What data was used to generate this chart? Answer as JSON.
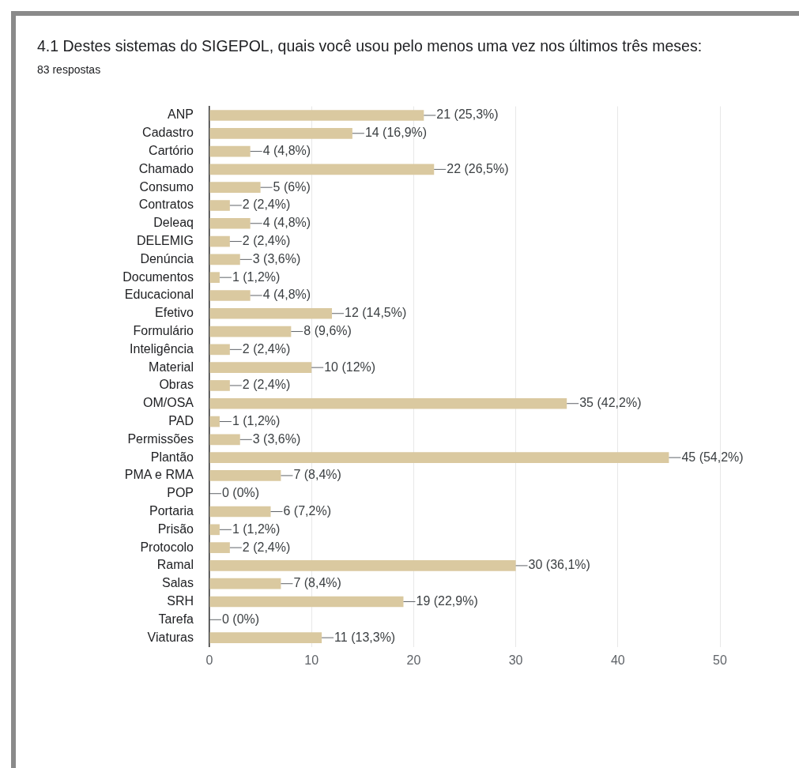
{
  "chart_data": {
    "type": "bar",
    "orientation": "horizontal",
    "title": "4.1 Destes sistemas do SIGEPOL, quais você usou pelo menos uma vez nos últimos três meses:",
    "subtitle": "83 respostas",
    "categories": [
      "ANP",
      "Cadastro",
      "Cartório",
      "Chamado",
      "Consumo",
      "Contratos",
      "Deleaq",
      "DELEMIG",
      "Denúncia",
      "Documentos",
      "Educacional",
      "Efetivo",
      "Formulário",
      "Inteligência",
      "Material",
      "Obras",
      "OM/OSA",
      "PAD",
      "Permissões",
      "Plantão",
      "PMA e RMA",
      "POP",
      "Portaria",
      "Prisão",
      "Protocolo",
      "Ramal",
      "Salas",
      "SRH",
      "Tarefa",
      "Viaturas"
    ],
    "values": [
      21,
      14,
      4,
      22,
      5,
      2,
      4,
      2,
      3,
      1,
      4,
      12,
      8,
      2,
      10,
      2,
      35,
      1,
      3,
      45,
      7,
      0,
      6,
      1,
      2,
      30,
      7,
      19,
      0,
      11
    ],
    "value_labels": [
      "21 (25,3%)",
      "14 (16,9%)",
      "4 (4,8%)",
      "22 (26,5%)",
      "5 (6%)",
      "2 (2,4%)",
      "4 (4,8%)",
      "2 (2,4%)",
      "3 (3,6%)",
      "1 (1,2%)",
      "4 (4,8%)",
      "12 (14,5%)",
      "8 (9,6%)",
      "2 (2,4%)",
      "10 (12%)",
      "2 (2,4%)",
      "35 (42,2%)",
      "1 (1,2%)",
      "3 (3,6%)",
      "45 (54,2%)",
      "7 (8,4%)",
      "0 (0%)",
      "6 (7,2%)",
      "1 (1,2%)",
      "2 (2,4%)",
      "30 (36,1%)",
      "7 (8,4%)",
      "19 (22,9%)",
      "0 (0%)",
      "11 (13,3%)"
    ],
    "color": "#dac9a0",
    "xlim": [
      0,
      50
    ],
    "xticks": [
      0,
      10,
      20,
      30,
      40,
      50
    ],
    "grid": "x",
    "legend": false
  }
}
